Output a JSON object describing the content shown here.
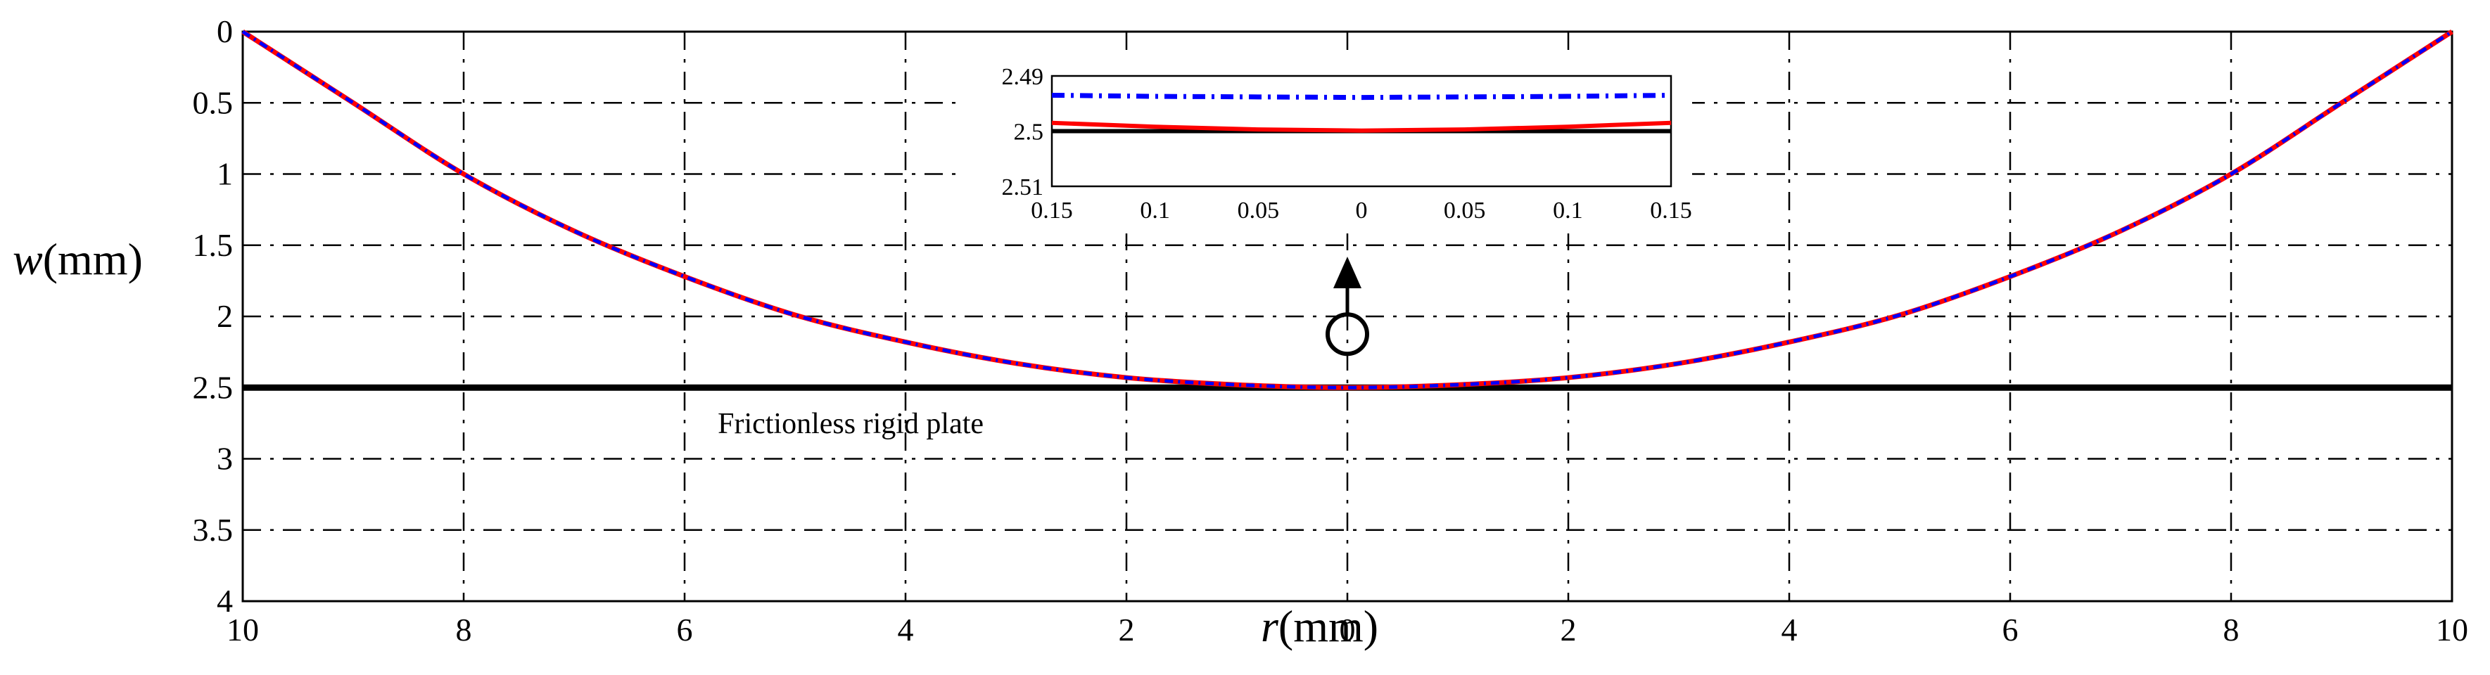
{
  "chart_data": {
    "type": "line",
    "title": "",
    "xlabel": {
      "var": "r",
      "unit": "(mm)"
    },
    "ylabel": {
      "var": "w",
      "unit": "(mm)"
    },
    "xlim": [
      -10,
      10
    ],
    "ylim": [
      0,
      4
    ],
    "y_reversed": true,
    "x_ticks": [
      -10,
      -8,
      -6,
      -4,
      -2,
      0,
      2,
      4,
      6,
      8,
      10
    ],
    "x_tick_labels": [
      "10",
      "8",
      "6",
      "4",
      "2",
      "0",
      "2",
      "4",
      "6",
      "8",
      "10"
    ],
    "y_ticks": [
      0,
      0.5,
      1,
      1.5,
      2,
      2.5,
      3,
      3.5,
      4
    ],
    "y_tick_labels": [
      "0",
      "0.5",
      "1",
      "1.5",
      "2",
      "2.5",
      "3",
      "3.5",
      "4"
    ],
    "grid": true,
    "series": [
      {
        "name": "Frictionless rigid plate",
        "color": "#000000",
        "style": "solid",
        "x": [
          -10,
          10
        ],
        "y": [
          2.5,
          2.5
        ]
      },
      {
        "name": "red solid curve",
        "color": "#ff0000",
        "style": "solid",
        "x": [
          -10,
          -9,
          -8,
          -7,
          -6,
          -5,
          -4,
          -3,
          -2,
          -1,
          0,
          1,
          2,
          3,
          4,
          5,
          6,
          7,
          8,
          9,
          10
        ],
        "y": [
          0,
          0.5,
          1.0,
          1.4,
          1.72,
          1.99,
          2.18,
          2.33,
          2.43,
          2.48,
          2.5,
          2.48,
          2.43,
          2.33,
          2.18,
          1.99,
          1.72,
          1.4,
          1.0,
          0.5,
          0
        ]
      },
      {
        "name": "blue dash-dot curve",
        "color": "#0000ff",
        "style": "dashdot",
        "x": [
          -10,
          -9,
          -8,
          -7,
          -6,
          -5,
          -4,
          -3,
          -2,
          -1,
          0,
          1,
          2,
          3,
          4,
          5,
          6,
          7,
          8,
          9,
          10
        ],
        "y": [
          0,
          0.5,
          1.0,
          1.4,
          1.72,
          1.99,
          2.18,
          2.33,
          2.43,
          2.48,
          2.5,
          2.48,
          2.43,
          2.33,
          2.18,
          1.99,
          1.72,
          1.4,
          1.0,
          0.5,
          0
        ]
      }
    ],
    "annotations": [
      {
        "text": "Frictionless rigid plate",
        "x": -5.7,
        "y": 2.75
      }
    ],
    "inset": {
      "xlim": [
        -0.15,
        0.15
      ],
      "ylim": [
        2.49,
        2.51
      ],
      "y_reversed": true,
      "x_ticks": [
        -0.15,
        -0.1,
        -0.05,
        0,
        0.05,
        0.1,
        0.15
      ],
      "x_tick_labels": [
        "0.15",
        "0.1",
        "0.05",
        "0",
        "0.05",
        "0.1",
        "0.15"
      ],
      "y_ticks": [
        2.49,
        2.5,
        2.51
      ],
      "y_tick_labels": [
        "2.49",
        "2.5",
        "2.51"
      ],
      "series": [
        {
          "name": "rigid plate",
          "color": "#000000",
          "style": "solid",
          "x": [
            -0.15,
            0,
            0.15
          ],
          "y": [
            2.5,
            2.5,
            2.5
          ]
        },
        {
          "name": "red solid curve",
          "color": "#ff0000",
          "style": "solid",
          "x": [
            -0.15,
            -0.1,
            -0.05,
            0,
            0.05,
            0.1,
            0.15
          ],
          "y": [
            2.4985,
            2.4992,
            2.4997,
            2.4999,
            2.4997,
            2.4992,
            2.4985
          ]
        },
        {
          "name": "blue dash-dot curve",
          "color": "#0000ff",
          "style": "dashdot",
          "x": [
            -0.15,
            -0.1,
            -0.05,
            0,
            0.05,
            0.1,
            0.15
          ],
          "y": [
            2.4935,
            2.4937,
            2.4938,
            2.4939,
            2.4938,
            2.4937,
            2.4935
          ]
        }
      ],
      "callout_at": {
        "x": 0,
        "y": 2.1
      }
    }
  }
}
